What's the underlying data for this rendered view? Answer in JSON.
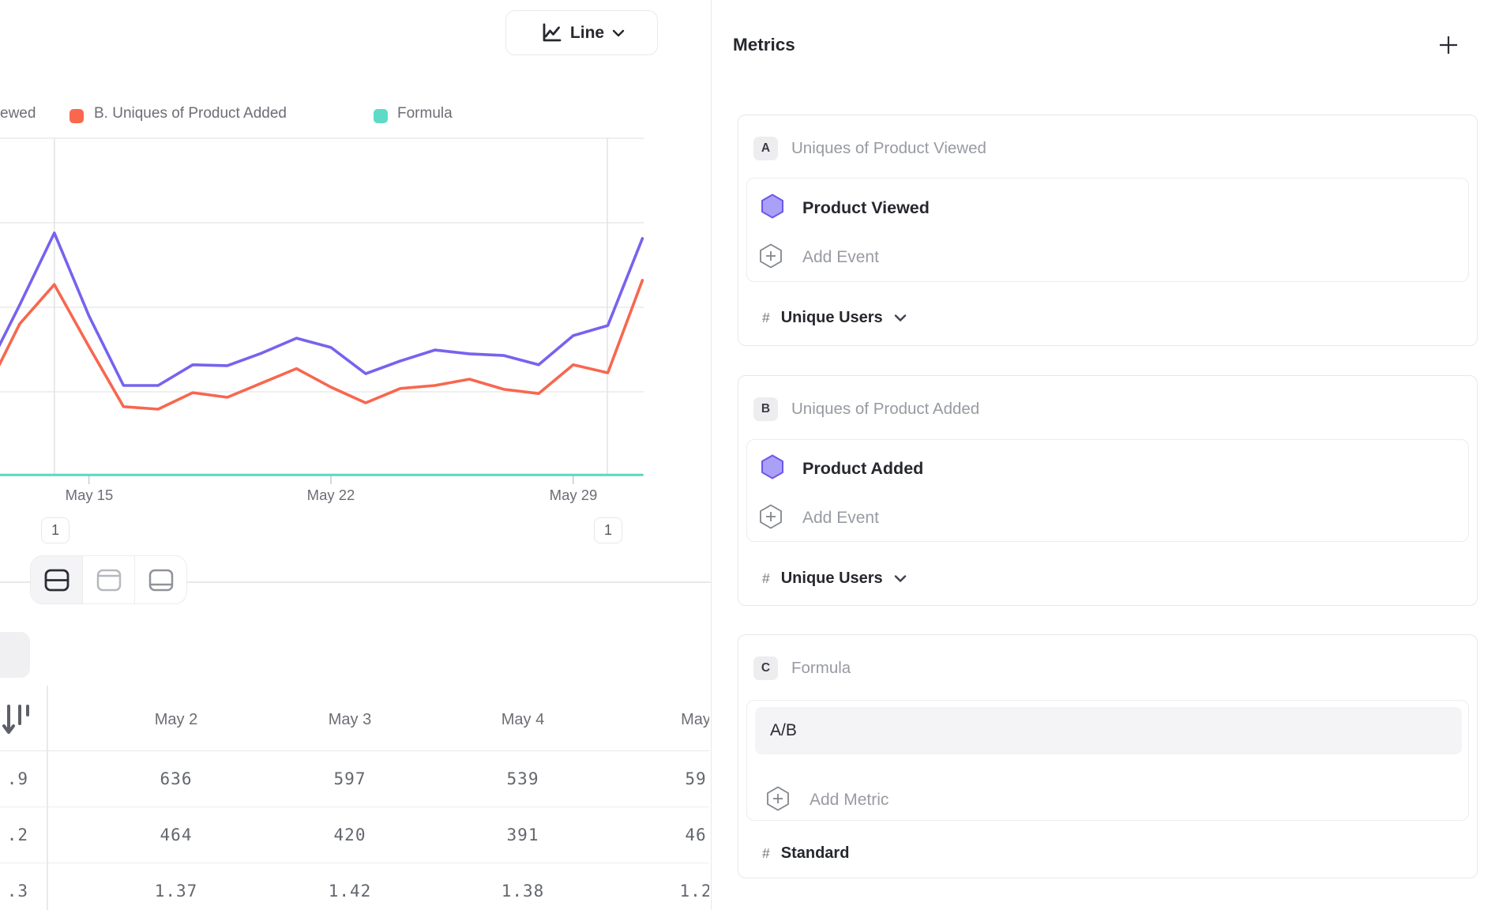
{
  "controls": {
    "chart_type": "Line"
  },
  "legend": {
    "fragment_a": "ewed",
    "item_b": "B. Uniques of Product Added",
    "item_c": "Formula"
  },
  "chart_data": {
    "type": "line",
    "x": [
      "May 12",
      "May 13",
      "May 14",
      "May 15",
      "May 16",
      "May 17",
      "May 18",
      "May 19",
      "May 20",
      "May 21",
      "May 22",
      "May 23",
      "May 24",
      "May 25",
      "May 26",
      "May 27",
      "May 28",
      "May 29",
      "May 30",
      "May 31"
    ],
    "x_axis_labels": [
      "May 15",
      "May 22",
      "May 29"
    ],
    "ylim": [
      0,
      800
    ],
    "grid": true,
    "legend_position": "top",
    "series": [
      {
        "name": "A. Uniques of Product Viewed",
        "color": "#7663ee",
        "values": [
          241,
          404,
          574,
          378,
          213,
          213,
          262,
          260,
          290,
          325,
          303,
          241,
          271,
          297,
          288,
          284,
          262,
          331,
          355,
          561
        ]
      },
      {
        "name": "B. Uniques of Product Added",
        "color": "#f7674f",
        "values": [
          195,
          359,
          452,
          305,
          163,
          157,
          196,
          185,
          219,
          253,
          209,
          172,
          206,
          213,
          228,
          204,
          194,
          262,
          243,
          462
        ]
      },
      {
        "name": "C. Formula (A/B)",
        "color": "#5cd6c2",
        "values": [
          1.4,
          1.4,
          1.4,
          1.4,
          1.4,
          1.4,
          1.4,
          1.4,
          1.4,
          1.4,
          1.4,
          1.4,
          1.4,
          1.4,
          1.4,
          1.4,
          1.4,
          1.4,
          1.4,
          1.4
        ]
      }
    ],
    "annotations": [
      {
        "label": "1",
        "x": "May 14"
      },
      {
        "label": "1",
        "x": "May 30"
      }
    ]
  },
  "view_toggle": {
    "options": [
      "split-view",
      "chart-only",
      "table-only"
    ],
    "active": "split-view"
  },
  "table": {
    "sticky_fragments": [
      ".9",
      ".2",
      ".3"
    ],
    "columns": [
      "May 2",
      "May 3",
      "May 4",
      "May"
    ],
    "rows": [
      {
        "cells": [
          "636",
          "597",
          "539",
          "59"
        ]
      },
      {
        "cells": [
          "464",
          "420",
          "391",
          "46"
        ]
      },
      {
        "cells": [
          "1.37",
          "1.42",
          "1.38",
          "1.2"
        ]
      }
    ]
  },
  "panel": {
    "title": "Metrics",
    "cards": [
      {
        "badge": "A",
        "label": "Uniques of Product Viewed",
        "event": "Product Viewed",
        "add_label": "Add Event",
        "measure_symbol": "#",
        "measure": "Unique Users"
      },
      {
        "badge": "B",
        "label": "Uniques of Product Added",
        "event": "Product Added",
        "add_label": "Add Event",
        "measure_symbol": "#",
        "measure": "Unique Users"
      },
      {
        "badge": "C",
        "label": "Formula",
        "formula": "A/B",
        "add_label": "Add Metric",
        "measure_symbol": "#",
        "measure": "Standard"
      }
    ]
  },
  "colors": {
    "purple_line": "#7663ee",
    "red_line": "#f7674f",
    "teal_line": "#5cd6c2",
    "hexagon_fill": "#aba0f8",
    "hexagon_stroke": "#6a58ea",
    "gridline": "#eaeaec",
    "panel_border": "#e8e9eb"
  }
}
